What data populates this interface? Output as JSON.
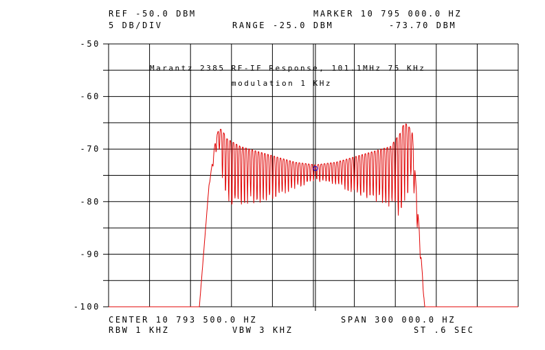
{
  "header": {
    "ref": "REF -50.0 DBM",
    "marker": "MARKER 10 795 000.0 HZ",
    "scale": "5 DB/DIV",
    "range": "RANGE -25.0 DBM",
    "marker_value": "-73.70 DBM"
  },
  "footer": {
    "center": "CENTER 10 793 500.0 HZ",
    "span": "SPAN 300 000.0 HZ",
    "rbw": "RBW 1 KHZ",
    "vbw": "VBW 3 KHZ",
    "sweep": "ST .6 SEC"
  },
  "chart_data": {
    "type": "line",
    "title": "Marantz 2385 RF-IF Response, 101.1MHz 75 KHz",
    "subtitle": "modulation 1 KHz",
    "xlabel": "",
    "ylabel": "",
    "x_unit": "HZ",
    "y_unit": "DBM",
    "xlim": [
      10643500,
      10943500
    ],
    "ylim": [
      -100,
      -50
    ],
    "yticks": [
      -50,
      -60,
      -70,
      -80,
      -90,
      -100
    ],
    "ytick_labels": [
      "-50",
      "-60",
      "-70",
      "-80",
      "-90",
      "-100"
    ],
    "grid": true,
    "line_color": "#e00000",
    "marker_color": "#0000dd",
    "marker": {
      "x": 10795000,
      "y": -73.7
    },
    "series": [
      {
        "envelope_x": [
          10643500,
          10710000,
          10717000,
          10722000,
          10724500,
          10727000,
          10730000,
          10740000,
          10760000,
          10780000,
          10795000,
          10810000,
          10830000,
          10850000,
          10857000,
          10860000,
          10863000,
          10866000,
          10875000,
          10943500
        ],
        "envelope_upper": [
          -100,
          -100,
          -77,
          -68,
          -66,
          -66.5,
          -68,
          -69.5,
          -71,
          -72.5,
          -73,
          -72.5,
          -71,
          -69.5,
          -67,
          -65,
          -65.5,
          -67,
          -100,
          -100
        ],
        "envelope_lower": [
          -100,
          -100,
          -77,
          -71,
          -70,
          -76,
          -80.5,
          -80.5,
          -80,
          -77.5,
          -76,
          -77,
          -79,
          -81,
          -83,
          -80,
          -78,
          -75,
          -100,
          -100
        ],
        "ripple_period_hz": 2300
      }
    ]
  }
}
